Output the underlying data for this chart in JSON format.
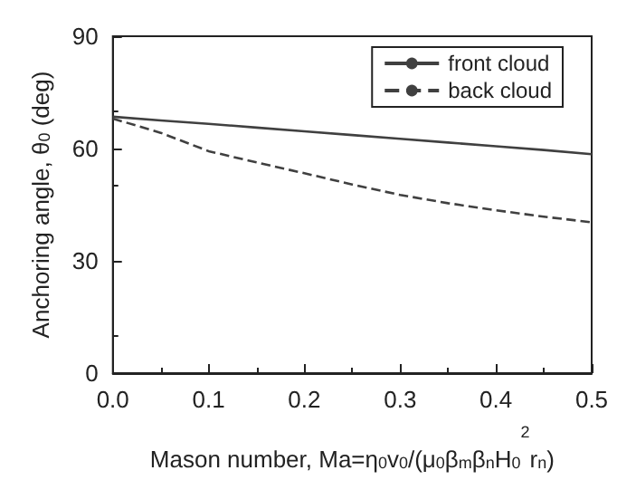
{
  "chart_data": {
    "type": "line",
    "xlabel": "Mason number, Ma=η$_{0}$v$_{0}$/(μ$_{0}$β$_{m}$β$_{n}$H$_{0}$$^{2}$r$_{n}$)",
    "ylabel": "Anchoring angle, θ$_{0}$ (deg)",
    "x": [
      0,
      0.05,
      0.1,
      0.15,
      0.2,
      0.25,
      0.3,
      0.35,
      0.4,
      0.45,
      0.5
    ],
    "series": [
      {
        "name": "front cloud",
        "color": "#404040",
        "line_style": "solid",
        "values": [
          68.5,
          67.5,
          66.6,
          65.6,
          64.6,
          63.6,
          62.6,
          61.6,
          60.6,
          59.6,
          58.5
        ]
      },
      {
        "name": "back cloud",
        "color": "#404040",
        "line_style": "dashed",
        "values": [
          68,
          64.2,
          59.3,
          56.3,
          53.4,
          50.4,
          47.6,
          45.4,
          43.5,
          41.8,
          40.3
        ]
      }
    ],
    "xlim": [
      0,
      0.5
    ],
    "xticks": [
      {
        "value": 0,
        "label": "0.0"
      },
      0.1,
      0.2,
      0.3,
      0.4,
      0.5
    ],
    "ylim": [
      0,
      90
    ],
    "yticks": [
      0,
      30,
      60,
      90
    ],
    "grid": false,
    "legend": "top right",
    "marker": "none"
  }
}
